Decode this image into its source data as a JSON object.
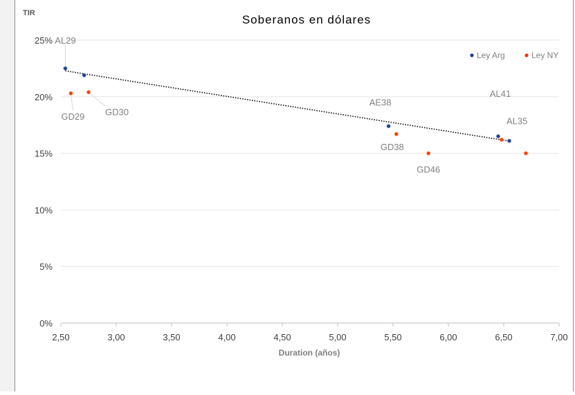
{
  "chart_data": {
    "type": "scatter",
    "title": "Soberanos en dólares",
    "xlabel": "Duration (años)",
    "ylabel": "TIR",
    "xlim": [
      2.5,
      7.0
    ],
    "ylim": [
      0,
      25
    ],
    "x_ticks": [
      "2,50",
      "3,00",
      "3,50",
      "4,00",
      "4,50",
      "5,00",
      "5,50",
      "6,00",
      "6,50",
      "7,00"
    ],
    "y_ticks": [
      "0%",
      "5%",
      "10%",
      "15%",
      "20%",
      "25%"
    ],
    "grid": true,
    "legend_position": "top-right",
    "series": [
      {
        "name": "Ley Arg",
        "color": "#1f3c88",
        "points": [
          {
            "label": "AL29",
            "x": 2.54,
            "y": 22.5
          },
          {
            "label": "",
            "x": 2.71,
            "y": 21.9
          },
          {
            "label": "AE38",
            "x": 5.46,
            "y": 17.4
          },
          {
            "label": "AL41",
            "x": 6.45,
            "y": 16.5
          },
          {
            "label": "AL35",
            "x": 6.55,
            "y": 16.1
          }
        ]
      },
      {
        "name": "Ley NY",
        "color": "#ff3300",
        "points": [
          {
            "label": "GD29",
            "x": 2.59,
            "y": 20.3
          },
          {
            "label": "GD30",
            "x": 2.75,
            "y": 20.4
          },
          {
            "label": "GD38",
            "x": 5.53,
            "y": 16.7
          },
          {
            "label": "GD46",
            "x": 5.82,
            "y": 15.0
          },
          {
            "label": "",
            "x": 6.48,
            "y": 16.2
          },
          {
            "label": "",
            "x": 6.7,
            "y": 15.0
          }
        ]
      }
    ],
    "trendline": {
      "series": "Ley Arg",
      "style": "dotted",
      "color": "#000000"
    }
  }
}
